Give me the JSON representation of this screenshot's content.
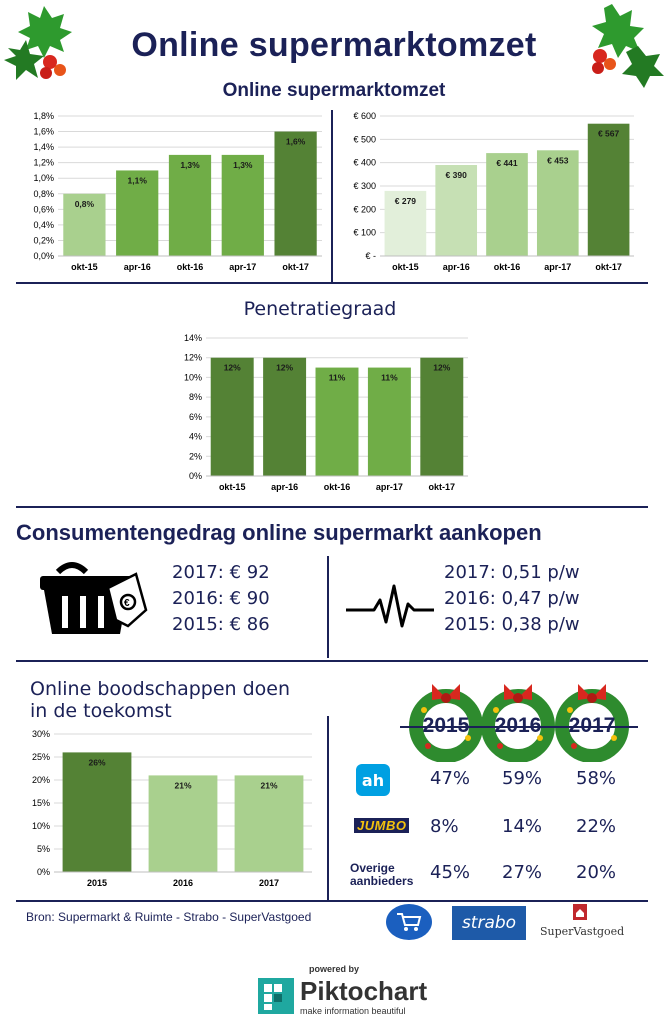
{
  "header": {
    "title": "Online supermarktomzet",
    "subtitle": "Online supermarktomzet"
  },
  "charts": {
    "share": {
      "type": "bar",
      "categories": [
        "okt-15",
        "apr-16",
        "okt-16",
        "apr-17",
        "okt-17"
      ],
      "values": [
        0.8,
        1.1,
        1.3,
        1.3,
        1.6
      ],
      "data_labels": [
        "0,8%",
        "1,1%",
        "1,3%",
        "1,3%",
        "1,6%"
      ],
      "yticks": [
        "0,0%",
        "0,2%",
        "0,4%",
        "0,6%",
        "0,8%",
        "1,0%",
        "1,2%",
        "1,4%",
        "1,6%",
        "1,8%"
      ],
      "ylim": [
        0,
        1.8
      ],
      "colors": [
        "#a9d08e",
        "#70ad47",
        "#70ad47",
        "#70ad47",
        "#548235"
      ]
    },
    "revenue": {
      "type": "bar",
      "categories": [
        "okt-15",
        "apr-16",
        "okt-16",
        "apr-17",
        "okt-17"
      ],
      "values": [
        279,
        390,
        441,
        453,
        567
      ],
      "data_labels": [
        "€ 279",
        "€ 390",
        "€ 441",
        "€ 453",
        "€ 567"
      ],
      "yticks": [
        "€ -",
        "€ 100",
        "€ 200",
        "€ 300",
        "€ 400",
        "€ 500",
        "€ 600"
      ],
      "ylim": [
        0,
        600
      ],
      "colors": [
        "#e2efda",
        "#c6e0b4",
        "#a9d08e",
        "#a9d08e",
        "#548235"
      ]
    },
    "penetration": {
      "title": "Penetratiegraad",
      "type": "bar",
      "categories": [
        "okt-15",
        "apr-16",
        "okt-16",
        "apr-17",
        "okt-17"
      ],
      "values": [
        12,
        12,
        11,
        11,
        12
      ],
      "data_labels": [
        "12%",
        "12%",
        "11%",
        "11%",
        "12%"
      ],
      "yticks": [
        "0%",
        "2%",
        "4%",
        "6%",
        "8%",
        "10%",
        "12%",
        "14%"
      ],
      "ylim": [
        0,
        14
      ],
      "colors": [
        "#548235",
        "#548235",
        "#70ad47",
        "#70ad47",
        "#548235"
      ]
    },
    "future": {
      "title": "Online boodschappen doen in de toekomst",
      "type": "bar",
      "categories": [
        "2015",
        "2016",
        "2017"
      ],
      "values": [
        26,
        21,
        21
      ],
      "data_labels": [
        "26%",
        "21%",
        "21%"
      ],
      "yticks": [
        "0%",
        "5%",
        "10%",
        "15%",
        "20%",
        "25%",
        "30%"
      ],
      "ylim": [
        0,
        30
      ],
      "colors": [
        "#548235",
        "#a9d08e",
        "#a9d08e"
      ]
    }
  },
  "chart_data": [
    {
      "type": "bar",
      "categories": [
        "okt-15",
        "apr-16",
        "okt-16",
        "apr-17",
        "okt-17"
      ],
      "values": [
        0.8,
        1.1,
        1.3,
        1.3,
        1.6
      ],
      "ylim": [
        0,
        1.8
      ]
    },
    {
      "type": "bar",
      "categories": [
        "okt-15",
        "apr-16",
        "okt-16",
        "apr-17",
        "okt-17"
      ],
      "values": [
        279,
        390,
        441,
        453,
        567
      ],
      "ylim": [
        0,
        600
      ]
    },
    {
      "type": "bar",
      "title": "Penetratiegraad",
      "categories": [
        "okt-15",
        "apr-16",
        "okt-16",
        "apr-17",
        "okt-17"
      ],
      "values": [
        12,
        12,
        11,
        11,
        12
      ],
      "ylim": [
        0,
        14
      ]
    },
    {
      "type": "bar",
      "title": "Online boodschappen doen in de toekomst",
      "categories": [
        "2015",
        "2016",
        "2017"
      ],
      "values": [
        26,
        21,
        21
      ],
      "ylim": [
        0,
        30
      ]
    }
  ],
  "consumer": {
    "heading": "Consumentengedrag online supermarkt aankopen",
    "spend": [
      "2017: € 92",
      "2016: € 90",
      "2015: € 86"
    ],
    "frequency": [
      "2017: 0,51 p/w",
      "2016: 0,47 p/w",
      "2015: 0,38 p/w"
    ],
    "basket_icon": "shopping-basket-icon",
    "pulse_icon": "heartbeat-icon"
  },
  "future_section": {
    "heading_line1": "Online boodschappen doen",
    "heading_line2": "in de toekomst",
    "years": [
      "2015",
      "2016",
      "2017"
    ],
    "rows": [
      {
        "provider": "ah",
        "values": [
          "47%",
          "59%",
          "58%"
        ]
      },
      {
        "provider": "JUMBO",
        "values": [
          "8%",
          "14%",
          "22%"
        ]
      },
      {
        "provider": "Overige aanbieders",
        "values": [
          "45%",
          "27%",
          "20%"
        ]
      }
    ]
  },
  "footer": {
    "source": "Bron: Supermarkt & Ruimte - Strabo - SuperVastgoed",
    "logo2": "strabo",
    "logo3": "SuperVastgoed",
    "powered_by": "powered by",
    "brand": "Piktochart",
    "tagline": "make information beautiful"
  },
  "colors": {
    "navy": "#1b2157",
    "green_dark": "#548235",
    "green_mid": "#70ad47",
    "green_light": "#a9d08e",
    "holly": "#2e8b2e",
    "berry": "#d8281f"
  }
}
